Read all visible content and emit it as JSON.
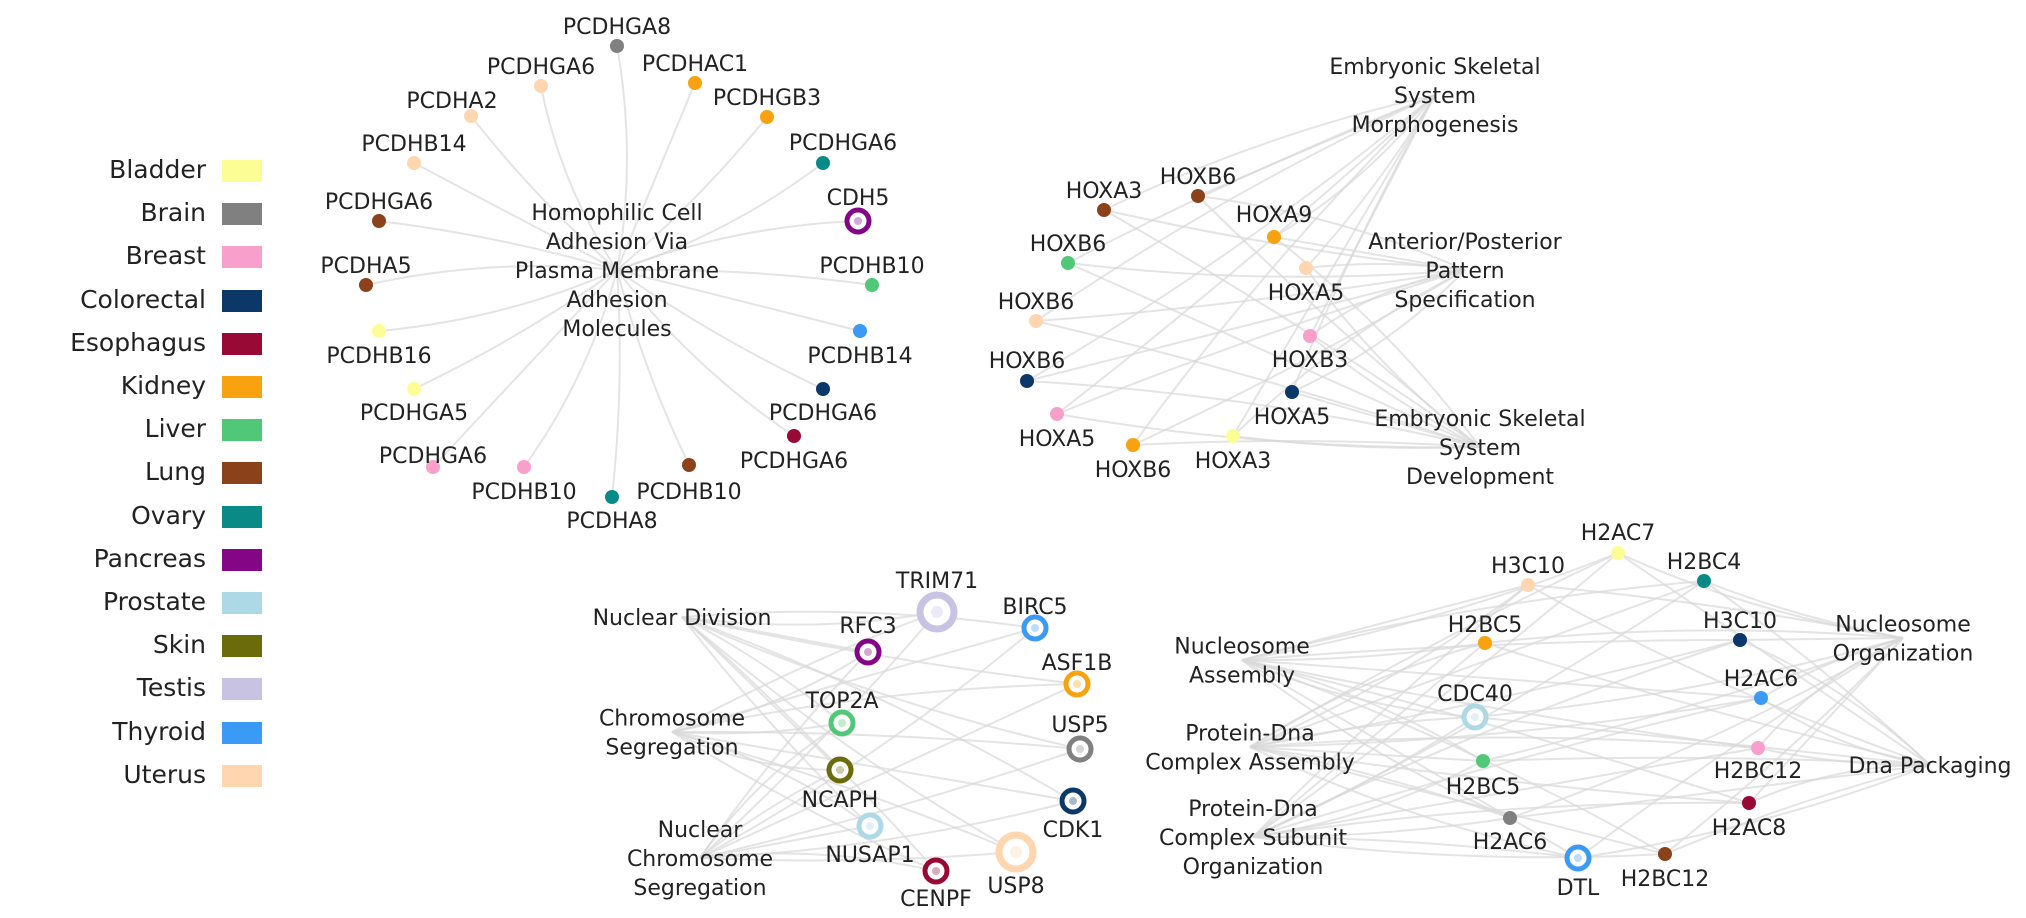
{
  "legend": [
    {
      "label": "Bladder",
      "color": "#fdfd96"
    },
    {
      "label": "Brain",
      "color": "#808080"
    },
    {
      "label": "Breast",
      "color": "#f99fcb"
    },
    {
      "label": "Colorectal",
      "color": "#0b3868"
    },
    {
      "label": "Esophagus",
      "color": "#980935"
    },
    {
      "label": "Kidney",
      "color": "#f9a20f"
    },
    {
      "label": "Liver",
      "color": "#51c878"
    },
    {
      "label": "Lung",
      "color": "#8b421b"
    },
    {
      "label": "Ovary",
      "color": "#0a8a86"
    },
    {
      "label": "Pancreas",
      "color": "#840586"
    },
    {
      "label": "Prostate",
      "color": "#add8e6"
    },
    {
      "label": "Skin",
      "color": "#6b6b0c"
    },
    {
      "label": "Testis",
      "color": "#c8c3e2"
    },
    {
      "label": "Thyroid",
      "color": "#3b9af5"
    },
    {
      "label": "Uterus",
      "color": "#ffd6b0"
    }
  ],
  "clusters": [
    {
      "terms": [
        {
          "label": "Homophilic Cell\nAdhesion Via\nPlasma Membrane\nAdhesion\nMolecules"
        }
      ],
      "genes": [
        {
          "label": "PCDHGA8",
          "tissue": "Brain"
        },
        {
          "label": "PCDHAC1",
          "tissue": "Kidney"
        },
        {
          "label": "PCDHGA6",
          "tissue": "Uterus"
        },
        {
          "label": "PCDHGB3",
          "tissue": "Kidney"
        },
        {
          "label": "PCDHA2",
          "tissue": "Uterus"
        },
        {
          "label": "PCDHGA6",
          "tissue": "Ovary"
        },
        {
          "label": "PCDHB14",
          "tissue": "Uterus"
        },
        {
          "label": "CDH5",
          "tissue": "Pancreas",
          "ring": true
        },
        {
          "label": "PCDHGA6",
          "tissue": "Lung"
        },
        {
          "label": "PCDHB10",
          "tissue": "Liver"
        },
        {
          "label": "PCDHA5",
          "tissue": "Lung"
        },
        {
          "label": "PCDHB14",
          "tissue": "Thyroid"
        },
        {
          "label": "PCDHB16",
          "tissue": "Bladder"
        },
        {
          "label": "PCDHGA6",
          "tissue": "Colorectal"
        },
        {
          "label": "PCDHGA5",
          "tissue": "Bladder"
        },
        {
          "label": "PCDHGA6",
          "tissue": "Esophagus"
        },
        {
          "label": "PCDHGA6",
          "tissue": "Breast"
        },
        {
          "label": "PCDHB10",
          "tissue": "Breast"
        },
        {
          "label": "PCDHB10",
          "tissue": "Lung"
        },
        {
          "label": "PCDHA8",
          "tissue": "Ovary"
        }
      ]
    },
    {
      "terms": [
        {
          "label": "Embryonic Skeletal\nSystem\nMorphogenesis"
        },
        {
          "label": "Anterior/Posterior\nPattern\nSpecification"
        },
        {
          "label": "Embryonic Skeletal\nSystem\nDevelopment"
        }
      ],
      "genes": [
        {
          "label": "HOXA3",
          "tissue": "Lung"
        },
        {
          "label": "HOXB6",
          "tissue": "Lung"
        },
        {
          "label": "HOXA9",
          "tissue": "Kidney"
        },
        {
          "label": "HOXB6",
          "tissue": "Liver"
        },
        {
          "label": "HOXA5",
          "tissue": "Uterus"
        },
        {
          "label": "HOXB6",
          "tissue": "Uterus"
        },
        {
          "label": "HOXB3",
          "tissue": "Breast"
        },
        {
          "label": "HOXB6",
          "tissue": "Colorectal"
        },
        {
          "label": "HOXA5",
          "tissue": "Colorectal"
        },
        {
          "label": "HOXA5",
          "tissue": "Breast"
        },
        {
          "label": "HOXB6",
          "tissue": "Kidney"
        },
        {
          "label": "HOXA3",
          "tissue": "Bladder"
        }
      ]
    },
    {
      "terms": [
        {
          "label": "Nuclear Division"
        },
        {
          "label": "Chromosome\nSegregation"
        },
        {
          "label": "Nuclear\nChromosome\nSegregation"
        }
      ],
      "genes": [
        {
          "label": "TRIM71",
          "tissue": "Testis",
          "ring": true
        },
        {
          "label": "RFC3",
          "tissue": "Pancreas",
          "ring": true
        },
        {
          "label": "BIRC5",
          "tissue": "Thyroid",
          "ring": true
        },
        {
          "label": "ASF1B",
          "tissue": "Kidney",
          "ring": true
        },
        {
          "label": "TOP2A",
          "tissue": "Liver",
          "ring": true
        },
        {
          "label": "USP5",
          "tissue": "Brain",
          "ring": true
        },
        {
          "label": "NCAPH",
          "tissue": "Skin",
          "ring": true
        },
        {
          "label": "CDK1",
          "tissue": "Colorectal",
          "ring": true
        },
        {
          "label": "NUSAP1",
          "tissue": "Prostate",
          "ring": true
        },
        {
          "label": "CENPF",
          "tissue": "Esophagus",
          "ring": true
        },
        {
          "label": "USP8",
          "tissue": "Uterus",
          "ring": true
        }
      ]
    },
    {
      "terms": [
        {
          "label": "Nucleosome\nAssembly"
        },
        {
          "label": "Protein-Dna\nComplex Assembly"
        },
        {
          "label": "Protein-Dna\nComplex Subunit\nOrganization"
        },
        {
          "label": "Nucleosome\nOrganization"
        },
        {
          "label": "Dna Packaging"
        }
      ],
      "genes": [
        {
          "label": "H2AC7",
          "tissue": "Bladder"
        },
        {
          "label": "H3C10",
          "tissue": "Uterus"
        },
        {
          "label": "H2BC4",
          "tissue": "Ovary"
        },
        {
          "label": "H2BC5",
          "tissue": "Kidney"
        },
        {
          "label": "H3C10",
          "tissue": "Colorectal"
        },
        {
          "label": "CDC40",
          "tissue": "Prostate",
          "ring": true
        },
        {
          "label": "H2AC6",
          "tissue": "Thyroid"
        },
        {
          "label": "H2BC5",
          "tissue": "Liver"
        },
        {
          "label": "H2BC12",
          "tissue": "Breast"
        },
        {
          "label": "H2AC8",
          "tissue": "Esophagus"
        },
        {
          "label": "H2AC6",
          "tissue": "Brain"
        },
        {
          "label": "DTL",
          "tissue": "Thyroid",
          "ring": true
        },
        {
          "label": "H2BC12",
          "tissue": "Lung"
        }
      ]
    }
  ]
}
